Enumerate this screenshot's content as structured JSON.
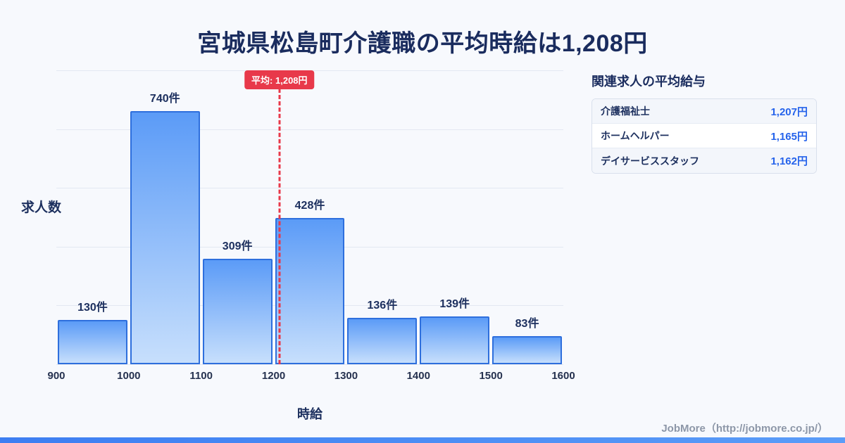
{
  "page": {
    "title": "宮城県松島町介護職の平均時給は1,208円",
    "footer": "JobMore（http://jobmore.co.jp/）",
    "background": "#f7f9fd",
    "accent_bar_color": "#3d7ef2"
  },
  "chart_data": {
    "type": "bar",
    "title": "宮城県松島町介護職の平均時給は1,208円",
    "xlabel": "時給",
    "ylabel": "求人数",
    "bins": [
      900,
      1000,
      1100,
      1200,
      1300,
      1400,
      1500,
      1600
    ],
    "categories": [
      "900-1000",
      "1000-1100",
      "1100-1200",
      "1200-1300",
      "1300-1400",
      "1400-1500",
      "1500-1600"
    ],
    "values": [
      130,
      740,
      309,
      428,
      136,
      139,
      83
    ],
    "value_suffix": "件",
    "average": {
      "label": "平均: 1,208円",
      "value": 1208
    },
    "xlim": [
      900,
      1600
    ],
    "ylim": [
      0,
      860
    ],
    "grid": true,
    "legend_position": "none",
    "colors": {
      "bar_fill_top": "#5b9bf7",
      "bar_fill_bottom": "#c7dffc",
      "bar_border": "#2e6fdd",
      "grid": "#e3e8f2",
      "average": "#e8394a",
      "label_text": "#1c2f5e",
      "value_blue": "#2563eb"
    }
  },
  "side_panel": {
    "title": "関連求人の平均給与",
    "rows": [
      {
        "label": "介護福祉士",
        "value": "1,207円"
      },
      {
        "label": "ホームヘルパー",
        "value": "1,165円"
      },
      {
        "label": "デイサービススタッフ",
        "value": "1,162円"
      }
    ]
  }
}
